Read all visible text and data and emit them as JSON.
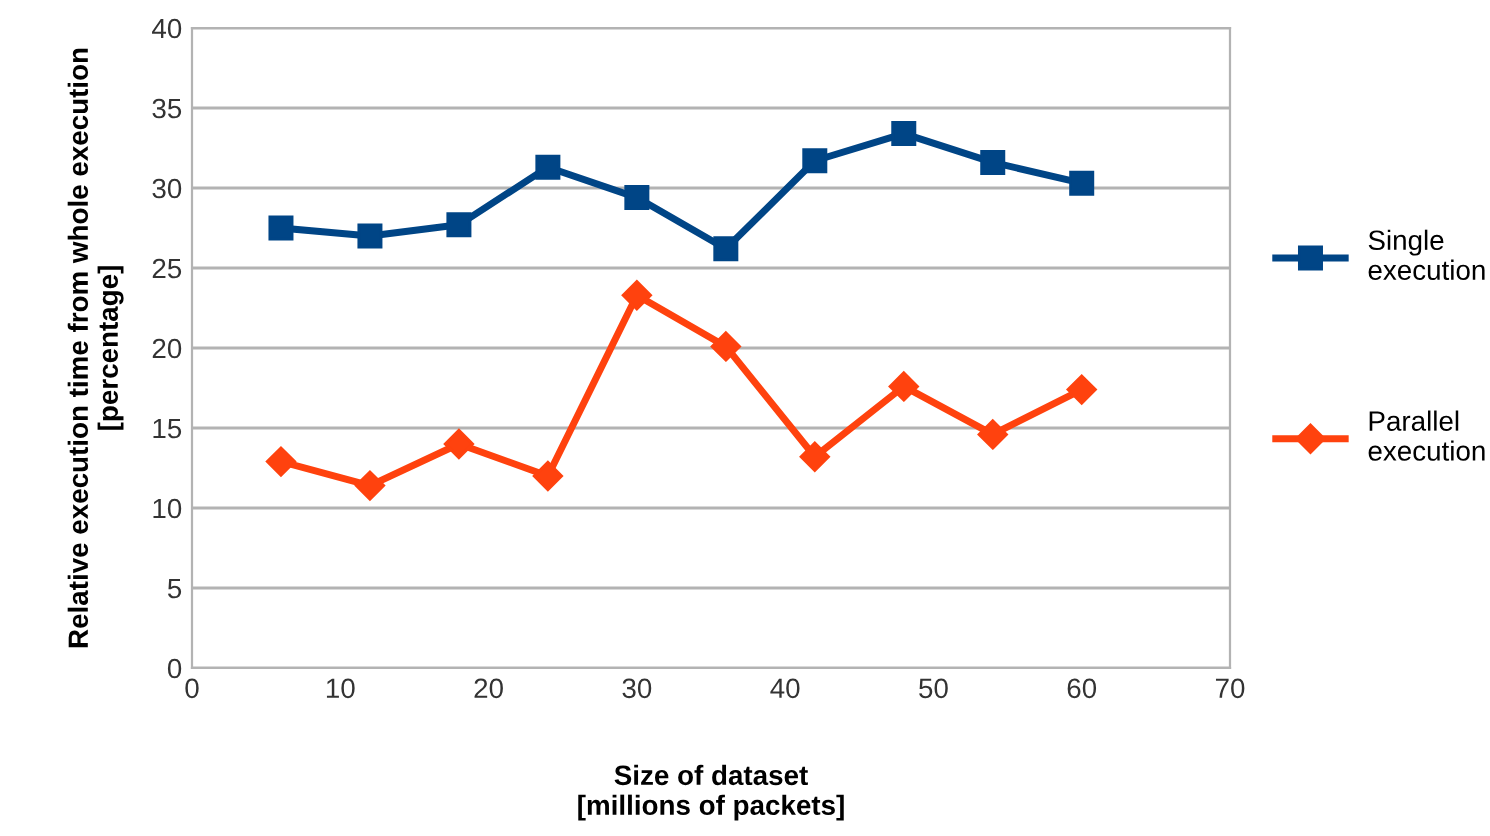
{
  "chart_data": {
    "type": "line",
    "xlabel": "Size of dataset\n[millions of packets]",
    "ylabel": "Relative execution time from whole execution\n[percentage]",
    "x": [
      6,
      12,
      18,
      24,
      30,
      36,
      42,
      48,
      54,
      60
    ],
    "series": [
      {
        "name": "Single\nexecution",
        "color": "#004586",
        "marker": "square",
        "values": [
          27.5,
          27.0,
          27.7,
          31.3,
          29.4,
          26.2,
          31.7,
          33.4,
          31.6,
          30.3
        ]
      },
      {
        "name": "Parallel\nexecution",
        "color": "#ff420e",
        "marker": "diamond",
        "values": [
          12.9,
          11.4,
          14.0,
          12.0,
          23.3,
          20.1,
          13.2,
          17.6,
          14.6,
          17.4
        ]
      }
    ],
    "xlim": [
      0,
      70
    ],
    "xticks": [
      0,
      10,
      20,
      30,
      40,
      50,
      60,
      70
    ],
    "ylim": [
      0,
      40
    ],
    "yticks": [
      0,
      5,
      10,
      15,
      20,
      25,
      30,
      35,
      40
    ],
    "grid": "y",
    "legend": "right",
    "line_style": "solid"
  }
}
